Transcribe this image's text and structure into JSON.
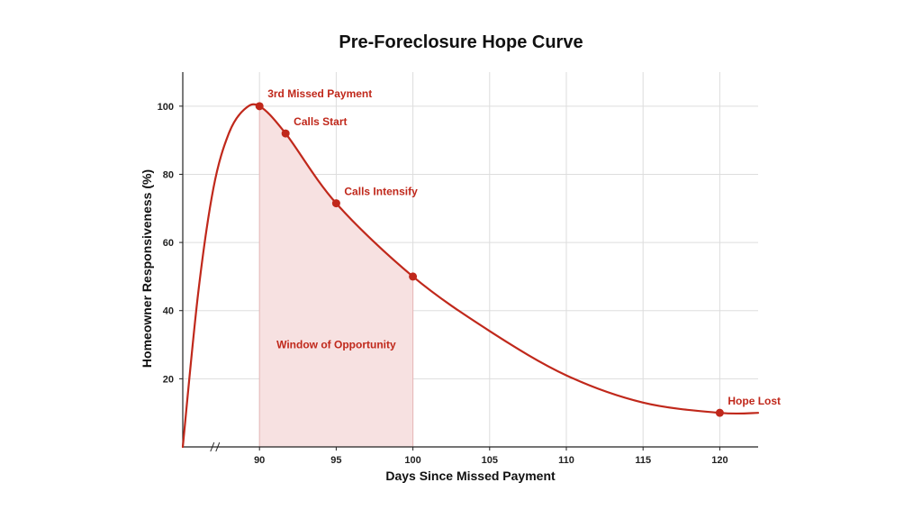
{
  "chart_data": {
    "type": "line",
    "title": "Pre-Foreclosure Hope Curve",
    "xlabel": "Days Since Missed Payment",
    "ylabel": "Homeowner Responsiveness (%)",
    "x_ticks": [
      90,
      95,
      100,
      105,
      110,
      115,
      120
    ],
    "y_ticks": [
      20,
      40,
      60,
      80,
      100
    ],
    "xlim": [
      85,
      122.5
    ],
    "ylim": [
      0,
      110
    ],
    "axis_break": "x-axis break before 90",
    "grid": true,
    "legend": "none",
    "series": [
      {
        "x": [
          85,
          86,
          87,
          88,
          89,
          90,
          91.7,
          95,
          100,
          105,
          110,
          115,
          120,
          122.5
        ],
        "y": [
          0,
          45,
          76,
          92,
          99,
          100,
          92,
          71.5,
          50,
          34,
          21,
          13,
          10,
          10
        ]
      }
    ],
    "markers": [
      {
        "x": 90,
        "y": 100,
        "label": "3rd Missed Payment"
      },
      {
        "x": 91.7,
        "y": 92,
        "label": "Calls Start"
      },
      {
        "x": 95,
        "y": 71.5,
        "label": "Calls Intensify"
      },
      {
        "x": 100,
        "y": 50,
        "label": ""
      },
      {
        "x": 120,
        "y": 10,
        "label": "Hope Lost"
      }
    ],
    "shaded_region": {
      "x_start": 90,
      "x_end": 100,
      "label": "Window of Opportunity"
    },
    "colors": {
      "curve": "#c0281b",
      "shade": "#f7e1e1",
      "text": "#c0281b"
    }
  }
}
